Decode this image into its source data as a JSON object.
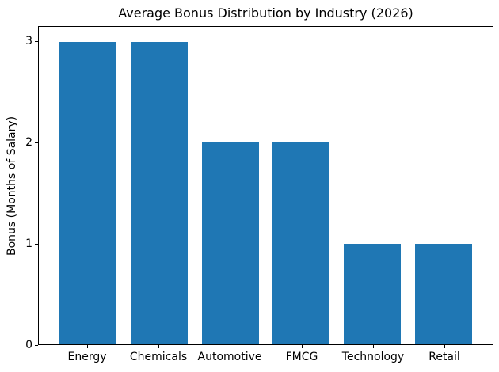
{
  "chart_data": {
    "type": "bar",
    "title": "Average Bonus Distribution by Industry (2026)",
    "xlabel": "",
    "ylabel": "Bonus (Months of Salary)",
    "categories": [
      "Energy",
      "Chemicals",
      "Automotive",
      "FMCG",
      "Technology",
      "Retail"
    ],
    "values": [
      3,
      3,
      2,
      2,
      1,
      1
    ],
    "yticks": [
      0,
      1,
      2,
      3
    ],
    "ylim": [
      0,
      3.15
    ],
    "bar_color": "#1f77b4",
    "bar_width": 0.8,
    "x_margin": 0.05,
    "grid": false,
    "legend": "none",
    "spine_color": "#000000",
    "background_color": "#ffffff"
  }
}
